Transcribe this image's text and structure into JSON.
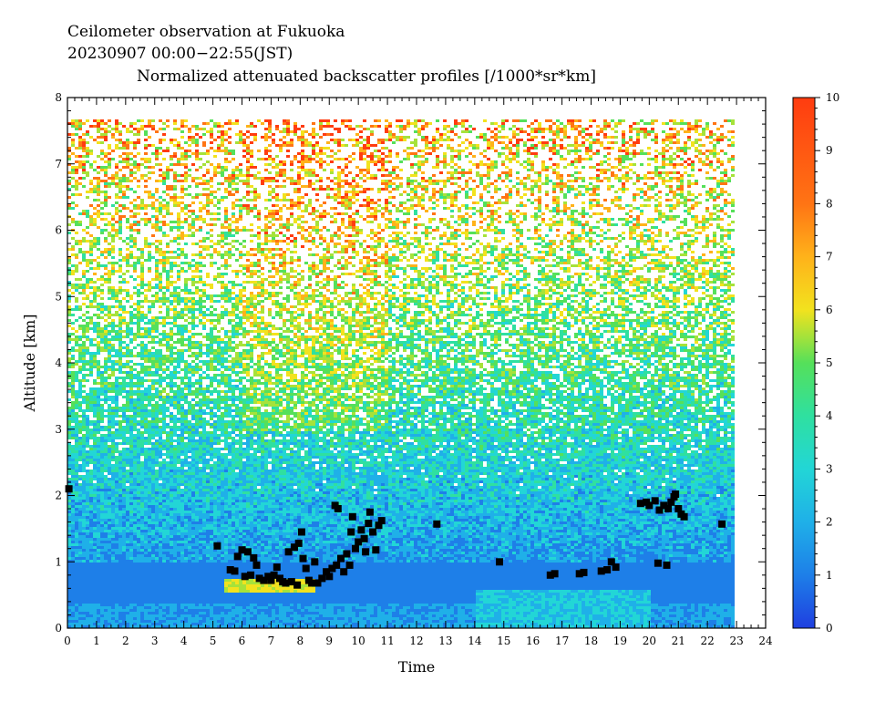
{
  "header": {
    "line1": "Ceilometer observation at Fukuoka",
    "line2": "20230907  00:00−22:55(JST)",
    "line3": "Normalized attenuated backscatter profiles [/1000*sr*km]"
  },
  "chart_data": {
    "type": "heatmap",
    "xlabel": "Time",
    "ylabel": "Altitude [km]",
    "xlim": [
      0,
      24
    ],
    "ylim": [
      0,
      8
    ],
    "data_extent": {
      "time_end": 22.9,
      "altitude_top": 7.68
    },
    "x_ticks": [
      "0",
      "1",
      "2",
      "3",
      "4",
      "5",
      "6",
      "7",
      "8",
      "9",
      "10",
      "11",
      "12",
      "13",
      "14",
      "15",
      "16",
      "17",
      "18",
      "19",
      "20",
      "21",
      "22",
      "23",
      "24"
    ],
    "y_ticks": [
      "0",
      "1",
      "2",
      "3",
      "4",
      "5",
      "6",
      "7",
      "8"
    ],
    "colorbar": {
      "range": [
        0,
        10
      ],
      "ticks": [
        "0",
        "1",
        "2",
        "3",
        "4",
        "5",
        "6",
        "7",
        "8",
        "9",
        "10"
      ],
      "colors": [
        "#1f3fe0",
        "#1e7fe8",
        "#1fb0e8",
        "#22d6d6",
        "#2fe0a0",
        "#55e05a",
        "#a6e23a",
        "#f2e21e",
        "#ffb21a",
        "#ff7414",
        "#ff3c10"
      ]
    },
    "cloud_base_points": [
      [
        0.05,
        2.1
      ],
      [
        5.15,
        1.24
      ],
      [
        5.6,
        0.88
      ],
      [
        5.75,
        0.86
      ],
      [
        5.85,
        1.08
      ],
      [
        6.0,
        1.18
      ],
      [
        6.1,
        0.78
      ],
      [
        6.2,
        1.15
      ],
      [
        6.3,
        0.8
      ],
      [
        6.4,
        1.06
      ],
      [
        6.5,
        0.95
      ],
      [
        6.6,
        0.75
      ],
      [
        6.75,
        0.72
      ],
      [
        6.9,
        0.78
      ],
      [
        7.0,
        0.72
      ],
      [
        7.1,
        0.8
      ],
      [
        7.2,
        0.92
      ],
      [
        7.3,
        0.75
      ],
      [
        7.4,
        0.7
      ],
      [
        7.5,
        0.68
      ],
      [
        7.6,
        1.15
      ],
      [
        7.7,
        0.7
      ],
      [
        7.8,
        1.22
      ],
      [
        7.9,
        0.65
      ],
      [
        7.95,
        1.28
      ],
      [
        8.05,
        1.45
      ],
      [
        8.1,
        1.05
      ],
      [
        8.2,
        0.9
      ],
      [
        8.3,
        0.72
      ],
      [
        8.4,
        0.68
      ],
      [
        8.5,
        1.0
      ],
      [
        8.6,
        0.68
      ],
      [
        8.75,
        0.75
      ],
      [
        8.9,
        0.85
      ],
      [
        9.0,
        0.78
      ],
      [
        9.1,
        0.9
      ],
      [
        9.2,
        1.85
      ],
      [
        9.25,
        0.95
      ],
      [
        9.3,
        1.8
      ],
      [
        9.4,
        1.05
      ],
      [
        9.5,
        0.85
      ],
      [
        9.6,
        1.12
      ],
      [
        9.7,
        0.95
      ],
      [
        9.75,
        1.45
      ],
      [
        9.8,
        1.68
      ],
      [
        9.9,
        1.2
      ],
      [
        10.0,
        1.3
      ],
      [
        10.1,
        1.48
      ],
      [
        10.2,
        1.35
      ],
      [
        10.25,
        1.15
      ],
      [
        10.35,
        1.58
      ],
      [
        10.4,
        1.75
      ],
      [
        10.5,
        1.45
      ],
      [
        10.6,
        1.18
      ],
      [
        10.7,
        1.55
      ],
      [
        10.8,
        1.62
      ],
      [
        12.7,
        1.57
      ],
      [
        14.85,
        1.0
      ],
      [
        16.6,
        0.8
      ],
      [
        16.75,
        0.82
      ],
      [
        17.6,
        0.82
      ],
      [
        17.75,
        0.84
      ],
      [
        18.35,
        0.86
      ],
      [
        18.55,
        0.88
      ],
      [
        18.7,
        1.0
      ],
      [
        18.85,
        0.92
      ],
      [
        19.7,
        1.88
      ],
      [
        19.9,
        1.9
      ],
      [
        20.0,
        1.85
      ],
      [
        20.2,
        1.92
      ],
      [
        20.3,
        0.98
      ],
      [
        20.35,
        1.78
      ],
      [
        20.5,
        1.85
      ],
      [
        20.6,
        0.95
      ],
      [
        20.65,
        1.8
      ],
      [
        20.75,
        1.9
      ],
      [
        20.85,
        1.98
      ],
      [
        20.9,
        2.02
      ],
      [
        21.0,
        1.8
      ],
      [
        21.1,
        1.72
      ],
      [
        21.2,
        1.68
      ],
      [
        22.5,
        1.57
      ]
    ]
  }
}
